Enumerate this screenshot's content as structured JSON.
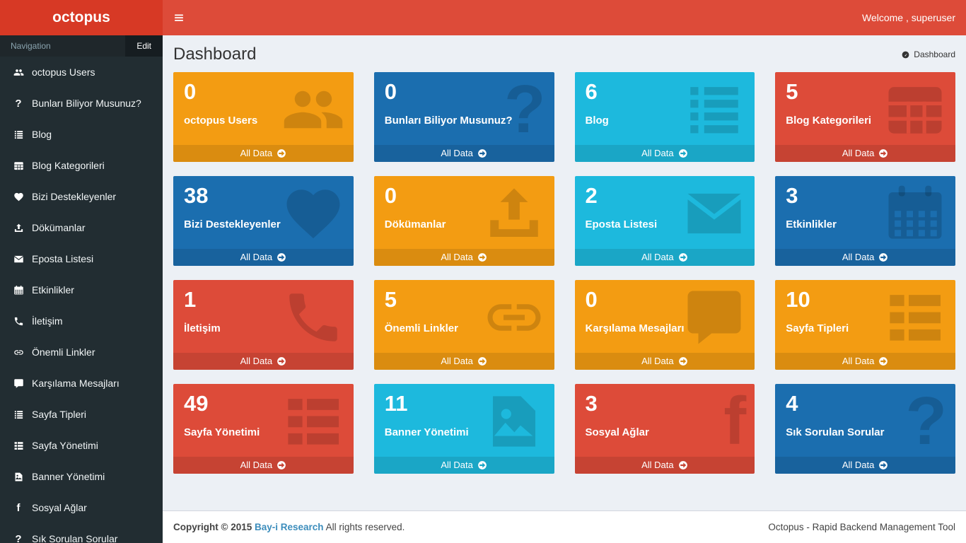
{
  "header": {
    "brand": "octopus",
    "menu_icon": "hamburger-icon",
    "welcome": "Welcome , superuser"
  },
  "sidebar": {
    "header_label": "Navigation",
    "edit_label": "Edit",
    "items": [
      {
        "label": "octopus Users",
        "icon": "users-icon"
      },
      {
        "label": "Bunları Biliyor Musunuz?",
        "icon": "question-icon"
      },
      {
        "label": "Blog",
        "icon": "list-icon"
      },
      {
        "label": "Blog Kategorileri",
        "icon": "table-icon"
      },
      {
        "label": "Bizi Destekleyenler",
        "icon": "heart-icon"
      },
      {
        "label": "Dökümanlar",
        "icon": "upload-icon"
      },
      {
        "label": "Eposta Listesi",
        "icon": "envelope-icon"
      },
      {
        "label": "Etkinlikler",
        "icon": "calendar-icon"
      },
      {
        "label": "İletişim",
        "icon": "phone-icon"
      },
      {
        "label": "Önemli Linkler",
        "icon": "link-icon"
      },
      {
        "label": "Karşılama Mesajları",
        "icon": "comment-icon"
      },
      {
        "label": "Sayfa Tipleri",
        "icon": "list-icon"
      },
      {
        "label": "Sayfa Yönetimi",
        "icon": "th-list-icon"
      },
      {
        "label": "Banner Yönetimi",
        "icon": "image-icon"
      },
      {
        "label": "Sosyal Ağlar",
        "icon": "facebook-icon"
      },
      {
        "label": "Sık Sorulan Sorular",
        "icon": "question-icon"
      }
    ]
  },
  "content": {
    "title": "Dashboard",
    "breadcrumb_icon": "dashboard-icon",
    "breadcrumb_label": "Dashboard"
  },
  "tiles_footer_label": "All Data",
  "tiles": [
    {
      "count": "0",
      "label": "octopus Users",
      "color": "#f39c12",
      "icon": "users-icon"
    },
    {
      "count": "0",
      "label": "Bunları Biliyor Musunuz?",
      "color": "#1b6eaf",
      "icon": "question-icon"
    },
    {
      "count": "6",
      "label": "Blog",
      "color": "#1db9dd",
      "icon": "list-icon"
    },
    {
      "count": "5",
      "label": "Blog Kategorileri",
      "color": "#dd4b39",
      "icon": "table-icon"
    },
    {
      "count": "38",
      "label": "Bizi Destekleyenler",
      "color": "#1b6eaf",
      "icon": "heart-icon"
    },
    {
      "count": "0",
      "label": "Dökümanlar",
      "color": "#f39c12",
      "icon": "upload-icon"
    },
    {
      "count": "2",
      "label": "Eposta Listesi",
      "color": "#1db9dd",
      "icon": "envelope-icon"
    },
    {
      "count": "3",
      "label": "Etkinlikler",
      "color": "#1b6eaf",
      "icon": "calendar-icon"
    },
    {
      "count": "1",
      "label": "İletişim",
      "color": "#dd4b39",
      "icon": "phone-icon"
    },
    {
      "count": "5",
      "label": "Önemli Linkler",
      "color": "#f39c12",
      "icon": "link-icon"
    },
    {
      "count": "0",
      "label": "Karşılama Mesajları",
      "color": "#f39c12",
      "icon": "comment-icon"
    },
    {
      "count": "10",
      "label": "Sayfa Tipleri",
      "color": "#f39c12",
      "icon": "th-list-icon"
    },
    {
      "count": "49",
      "label": "Sayfa Yönetimi",
      "color": "#dd4b39",
      "icon": "th-list-icon"
    },
    {
      "count": "11",
      "label": "Banner Yönetimi",
      "color": "#1db9dd",
      "icon": "image-icon"
    },
    {
      "count": "3",
      "label": "Sosyal Ağlar",
      "color": "#dd4b39",
      "icon": "facebook-icon"
    },
    {
      "count": "4",
      "label": "Sık Sorulan Sorular",
      "color": "#1b6eaf",
      "icon": "question-icon"
    }
  ],
  "footer": {
    "copyright": "Copyright © 2015",
    "link_label": "Bay-i Research",
    "rights": "All rights reserved.",
    "right_text": "Octopus - Rapid Backend Management Tool"
  },
  "colors": {
    "navbar": "#dd4b39",
    "logo": "#d73925",
    "sidebar": "#222d32",
    "page_background": "#ecf0f5",
    "tile_orange": "#f39c12",
    "tile_blue": "#1b6eaf",
    "tile_aqua": "#1db9dd",
    "tile_red": "#dd4b39",
    "footer_link": "#3c8dbc"
  }
}
